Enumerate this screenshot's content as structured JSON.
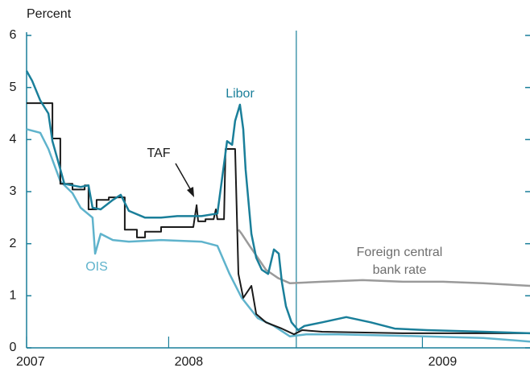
{
  "chart_data": {
    "type": "line",
    "ylabel": "Percent",
    "xlim": [
      2007.44,
      2009.424
    ],
    "ylim": [
      0,
      6
    ],
    "yticks": [
      0,
      1,
      2,
      3,
      4,
      5,
      6
    ],
    "xticks": [
      {
        "value": 2007.44,
        "label": "2007"
      },
      2008,
      2009
    ],
    "vline": 2008.503,
    "series": [
      {
        "name": "Foreign central bank rate",
        "color": "#9a9a9a",
        "x": [
          2008.275,
          2008.288,
          2008.319,
          2008.351,
          2008.383,
          2008.431,
          2008.478,
          2008.605,
          2008.764,
          2008.923,
          2009.081,
          2009.24,
          2009.424
        ],
        "values": [
          2.27,
          2.19,
          1.96,
          1.73,
          1.5,
          1.34,
          1.24,
          1.27,
          1.3,
          1.27,
          1.27,
          1.24,
          1.19
        ]
      },
      {
        "name": "OIS",
        "color": "#5fb3cc",
        "x": [
          2007.44,
          2007.494,
          2007.526,
          2007.573,
          2007.621,
          2007.653,
          2007.7,
          2007.71,
          2007.732,
          2007.78,
          2007.843,
          2007.97,
          2008.129,
          2008.192,
          2008.24,
          2008.288,
          2008.351,
          2008.415,
          2008.478,
          2008.542,
          2008.669,
          2008.923,
          2009.24,
          2009.424
        ],
        "values": [
          4.2,
          4.13,
          3.82,
          3.2,
          2.97,
          2.69,
          2.5,
          1.81,
          2.19,
          2.07,
          2.04,
          2.07,
          2.04,
          1.96,
          1.42,
          0.96,
          0.57,
          0.42,
          0.22,
          0.26,
          0.26,
          0.23,
          0.19,
          0.12
        ]
      },
      {
        "name": "TAF",
        "color": "#1a1a1a",
        "x": [
          2007.44,
          2007.542,
          2007.542,
          2007.573,
          2007.573,
          2007.621,
          2007.621,
          2007.669,
          2007.669,
          2007.684,
          2007.684,
          2007.716,
          2007.716,
          2007.764,
          2007.764,
          2007.827,
          2007.827,
          2007.875,
          2007.875,
          2007.907,
          2007.907,
          2007.97,
          2007.97,
          2008.097,
          2008.11,
          2008.116,
          2008.145,
          2008.145,
          2008.177,
          2008.186,
          2008.192,
          2008.218,
          2008.224,
          2008.262,
          2008.275,
          2008.294,
          2008.326,
          2008.345,
          2008.383,
          2008.446,
          2008.494,
          2008.526,
          2008.605,
          2008.923,
          2009.424
        ],
        "values": [
          4.7,
          4.7,
          4.02,
          4.02,
          3.15,
          3.15,
          3.04,
          3.04,
          3.12,
          3.12,
          2.66,
          2.66,
          2.84,
          2.84,
          2.89,
          2.89,
          2.27,
          2.27,
          2.12,
          2.12,
          2.23,
          2.23,
          2.32,
          2.32,
          2.74,
          2.43,
          2.43,
          2.47,
          2.47,
          2.66,
          2.47,
          2.47,
          3.82,
          3.82,
          1.42,
          0.96,
          1.19,
          0.65,
          0.49,
          0.37,
          0.26,
          0.34,
          0.31,
          0.28,
          0.28
        ]
      },
      {
        "name": "Libor",
        "color": "#1a7f9a",
        "x": [
          2007.44,
          2007.462,
          2007.494,
          2007.526,
          2007.542,
          2007.573,
          2007.589,
          2007.653,
          2007.684,
          2007.7,
          2007.732,
          2007.78,
          2007.811,
          2007.843,
          2007.907,
          2007.97,
          2008.034,
          2008.129,
          2008.192,
          2008.23,
          2008.25,
          2008.262,
          2008.281,
          2008.294,
          2008.303,
          2008.326,
          2008.345,
          2008.367,
          2008.392,
          2008.415,
          2008.434,
          2008.446,
          2008.462,
          2008.484,
          2008.51,
          2008.535,
          2008.605,
          2008.7,
          2008.796,
          2008.891,
          2009.018,
          2009.24,
          2009.424
        ],
        "values": [
          5.32,
          5.13,
          4.75,
          4.5,
          3.97,
          3.43,
          3.15,
          3.09,
          3.12,
          2.69,
          2.66,
          2.84,
          2.94,
          2.63,
          2.5,
          2.5,
          2.53,
          2.53,
          2.58,
          3.97,
          3.9,
          4.36,
          4.67,
          4.2,
          3.43,
          2.19,
          1.73,
          1.5,
          1.42,
          1.89,
          1.81,
          1.27,
          0.8,
          0.49,
          0.34,
          0.42,
          0.49,
          0.59,
          0.49,
          0.37,
          0.34,
          0.31,
          0.28
        ]
      }
    ],
    "annotations": {
      "libor": "Libor",
      "taf": "TAF",
      "ois": "OIS",
      "foreign": [
        "Foreign central",
        "bank rate"
      ]
    }
  }
}
